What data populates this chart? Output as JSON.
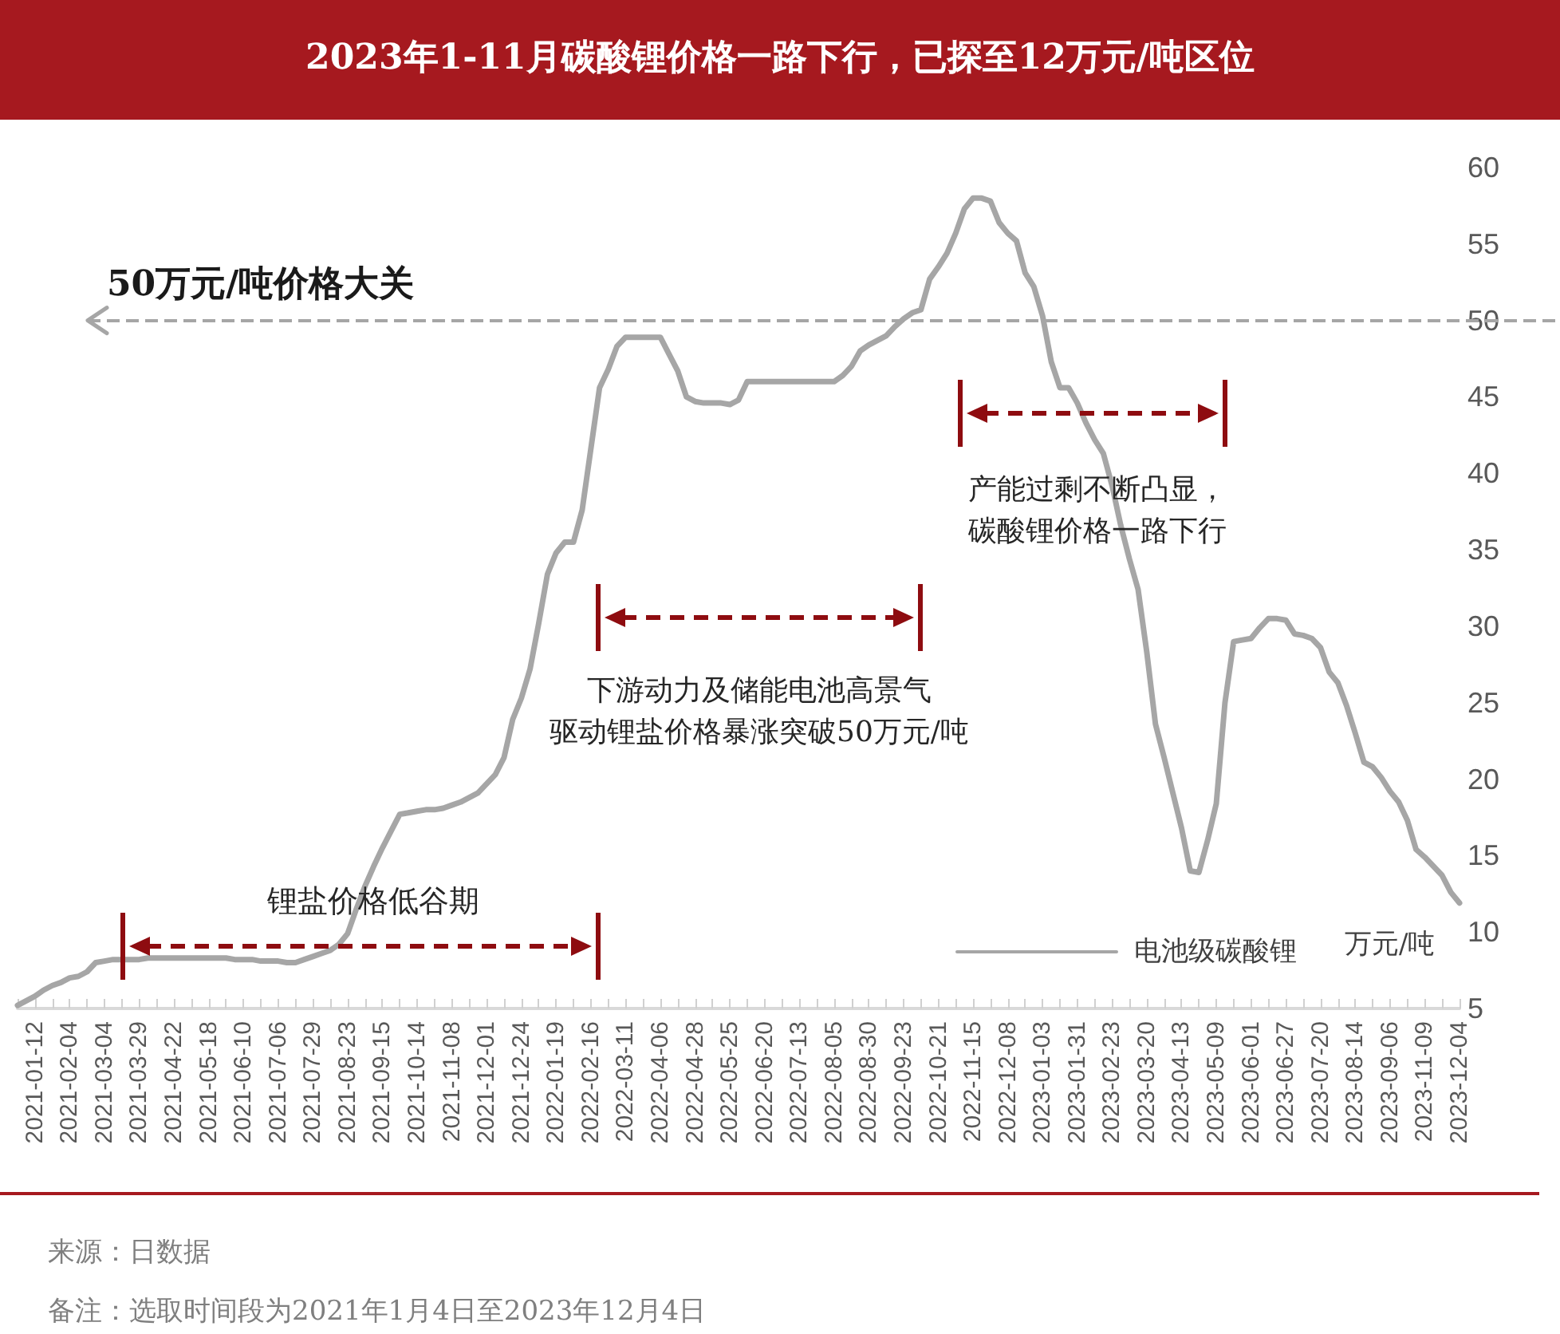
{
  "chart_data": {
    "type": "line",
    "title": "2023年1-11月碳酸锂价格一路下行，已探至12万元/吨区位",
    "ylabel": "万元/吨",
    "categories": [
      null,
      null,
      "2021-01-12",
      null,
      null,
      null,
      "2021-02-04",
      null,
      null,
      null,
      "2021-03-04",
      null,
      null,
      null,
      "2021-03-29",
      null,
      null,
      null,
      "2021-04-22",
      null,
      null,
      null,
      "2021-05-18",
      null,
      null,
      null,
      "2021-06-10",
      null,
      null,
      null,
      "2021-07-06",
      null,
      null,
      null,
      "2021-07-29",
      null,
      null,
      null,
      "2021-08-23",
      null,
      null,
      null,
      "2021-09-15",
      null,
      null,
      null,
      "2021-10-14",
      null,
      null,
      null,
      "2021-11-08",
      null,
      null,
      null,
      "2021-12-01",
      null,
      null,
      null,
      "2021-12-24",
      null,
      null,
      null,
      "2022-01-19",
      null,
      null,
      null,
      "2022-02-16",
      null,
      null,
      null,
      "2022-03-11",
      null,
      null,
      null,
      "2022-04-06",
      null,
      null,
      null,
      "2022-04-28",
      null,
      null,
      null,
      "2022-05-25",
      null,
      null,
      null,
      "2022-06-20",
      null,
      null,
      null,
      "2022-07-13",
      null,
      null,
      null,
      "2022-08-05",
      null,
      null,
      null,
      "2022-08-30",
      null,
      null,
      null,
      "2022-09-23",
      null,
      null,
      null,
      "2022-10-21",
      null,
      null,
      null,
      "2022-11-15",
      null,
      null,
      null,
      "2022-12-08",
      null,
      null,
      null,
      "2023-01-03",
      null,
      null,
      null,
      "2023-01-31",
      null,
      null,
      null,
      "2023-02-23",
      null,
      null,
      null,
      "2023-03-20",
      null,
      null,
      null,
      "2023-04-13",
      null,
      null,
      null,
      "2023-05-09",
      null,
      null,
      null,
      "2023-06-01",
      null,
      null,
      null,
      "2023-06-27",
      null,
      null,
      null,
      "2023-07-20",
      null,
      null,
      null,
      "2023-08-14",
      null,
      null,
      null,
      "2023-09-06",
      null,
      null,
      null,
      "2023-11-09",
      null,
      null,
      null,
      "2023-12-04"
    ],
    "series": [
      {
        "name": "电池级碳酸锂",
        "color": "#a6a6a6",
        "values": [
          5.2,
          5.5,
          5.8,
          6.2,
          6.5,
          6.7,
          7.0,
          7.1,
          7.4,
          8.0,
          8.1,
          8.2,
          8.2,
          8.2,
          8.2,
          8.3,
          8.3,
          8.3,
          8.3,
          8.3,
          8.3,
          8.3,
          8.3,
          8.3,
          8.3,
          8.2,
          8.2,
          8.2,
          8.1,
          8.1,
          8.1,
          8.0,
          8.0,
          8.2,
          8.4,
          8.6,
          8.8,
          9.2,
          9.9,
          11.5,
          13.0,
          14.3,
          15.5,
          16.6,
          17.7,
          17.8,
          17.9,
          18.0,
          18.0,
          18.1,
          18.3,
          18.5,
          18.8,
          19.1,
          19.7,
          20.3,
          21.4,
          23.9,
          25.3,
          27.2,
          30.2,
          33.4,
          34.8,
          35.5,
          35.5,
          37.6,
          41.6,
          45.6,
          46.8,
          48.3,
          48.9,
          48.9,
          48.9,
          48.9,
          48.9,
          47.8,
          46.7,
          45.0,
          44.7,
          44.6,
          44.6,
          44.6,
          44.5,
          44.8,
          46.0,
          46.0,
          46.0,
          46.0,
          46.0,
          46.0,
          46.0,
          46.0,
          46.0,
          46.0,
          46.0,
          46.4,
          47.0,
          48.0,
          48.4,
          48.7,
          49.0,
          49.6,
          50.1,
          50.5,
          50.7,
          52.7,
          53.5,
          54.4,
          55.7,
          57.3,
          58.0,
          58.0,
          57.8,
          56.4,
          55.7,
          55.2,
          53.1,
          52.2,
          50.3,
          47.3,
          45.6,
          45.6,
          44.6,
          43.3,
          42.2,
          41.3,
          39.2,
          36.6,
          34.4,
          32.4,
          28.3,
          23.6,
          21.4,
          19.1,
          16.8,
          14.0,
          13.9,
          16.0,
          18.4,
          25.0,
          29.0,
          29.1,
          29.2,
          29.9,
          30.5,
          30.5,
          30.4,
          29.5,
          29.4,
          29.2,
          28.6,
          27.0,
          26.3,
          24.8,
          23.0,
          21.1,
          20.8,
          20.1,
          19.2,
          18.5,
          17.3,
          15.4,
          14.9,
          14.3,
          13.7,
          12.6,
          11.9
        ]
      }
    ],
    "ylim": [
      5,
      60
    ],
    "yticks": [
      5,
      10,
      15,
      20,
      25,
      30,
      35,
      40,
      45,
      50,
      55,
      60
    ],
    "grid": false,
    "legend": "bottom right",
    "marker": "none",
    "line_style": "solid",
    "ref_lines": [
      {
        "axis": "y",
        "value": 50,
        "label": "50万元/吨价格大关",
        "color": "#a6a6a6",
        "line_style": "dashed"
      }
    ],
    "annotations": [
      "锂盐价格低谷期",
      "下游动力及储能电池高景气驱动锂盐价格暴涨突破50万元/吨",
      "产能过剩不断凸显，碳酸锂价格一路下行",
      "来源：日数据",
      "备注：选取时间段为2021年1月4日至2023年12月4日"
    ]
  }
}
